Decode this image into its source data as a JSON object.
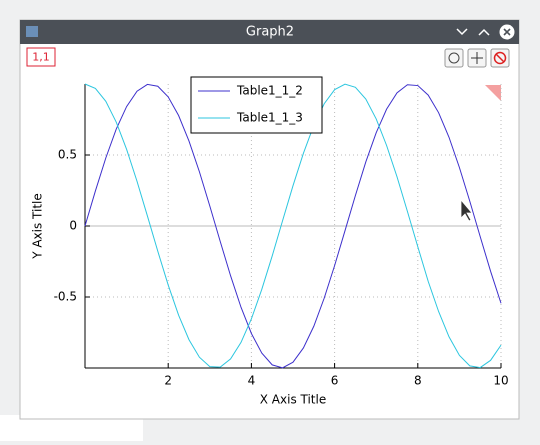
{
  "window": {
    "title": "Graph2",
    "layer_label": "1,1"
  },
  "chart_data": {
    "type": "line",
    "x": [
      0,
      0.25,
      0.5,
      0.75,
      1,
      1.25,
      1.5,
      1.75,
      2,
      2.25,
      2.5,
      2.75,
      3,
      3.25,
      3.5,
      3.75,
      4,
      4.25,
      4.5,
      4.75,
      5,
      5.25,
      5.5,
      5.75,
      6,
      6.25,
      6.5,
      6.75,
      7,
      7.25,
      7.5,
      7.75,
      8,
      8.25,
      8.5,
      8.75,
      9,
      9.25,
      9.5,
      9.75,
      10
    ],
    "series": [
      {
        "name": "Table1_1_2",
        "color": "#3d30cc",
        "values": [
          0,
          0.247,
          0.479,
          0.682,
          0.841,
          0.949,
          0.997,
          0.984,
          0.909,
          0.778,
          0.598,
          0.382,
          0.141,
          -0.108,
          -0.351,
          -0.572,
          -0.757,
          -0.895,
          -0.978,
          -0.999,
          -0.959,
          -0.859,
          -0.706,
          -0.508,
          -0.279,
          -0.033,
          0.215,
          0.451,
          0.657,
          0.823,
          0.938,
          0.995,
          0.989,
          0.922,
          0.798,
          0.625,
          0.412,
          0.174,
          -0.075,
          -0.319,
          -0.544
        ]
      },
      {
        "name": "Table1_1_3",
        "color": "#2cc6df",
        "values": [
          1,
          0.969,
          0.878,
          0.732,
          0.54,
          0.315,
          0.071,
          -0.178,
          -0.416,
          -0.628,
          -0.801,
          -0.924,
          -0.99,
          -0.994,
          -0.936,
          -0.82,
          -0.654,
          -0.446,
          -0.211,
          0.038,
          0.284,
          0.512,
          0.709,
          0.861,
          0.96,
          0.999,
          0.977,
          0.894,
          0.754,
          0.567,
          0.347,
          0.103,
          -0.146,
          -0.39,
          -0.602,
          -0.78,
          -0.911,
          -0.985,
          -0.997,
          -0.946,
          -0.839
        ]
      }
    ],
    "xlabel": "X Axis Title",
    "ylabel": "Y Axis Title",
    "xlim": [
      0,
      10
    ],
    "ylim": [
      -1,
      1
    ],
    "xticks": [
      2,
      4,
      6,
      8,
      10
    ],
    "yticks": [
      -0.5,
      0,
      0.5
    ],
    "grid": true
  }
}
